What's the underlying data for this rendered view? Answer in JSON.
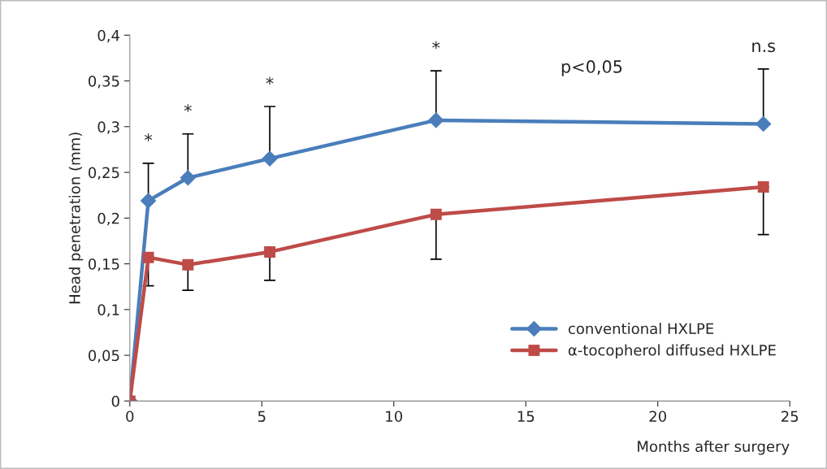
{
  "chart_data": {
    "type": "line",
    "xlabel": "Months after surgery",
    "ylabel": "Head penetration (mm)",
    "xlim": [
      0,
      25
    ],
    "xticks": [
      0,
      5,
      10,
      15,
      20,
      25
    ],
    "ylim": [
      0,
      0.4
    ],
    "yticks": [
      {
        "value": 0,
        "label": "0"
      },
      {
        "value": 0.05,
        "label": "0,05"
      },
      {
        "value": 0.1,
        "label": "0,1"
      },
      {
        "value": 0.15,
        "label": "0,15"
      },
      {
        "value": 0.2,
        "label": "0,2"
      },
      {
        "value": 0.25,
        "label": "0,25"
      },
      {
        "value": 0.3,
        "label": "0,3"
      },
      {
        "value": 0.35,
        "label": "0,35"
      },
      {
        "value": 0.4,
        "label": "0,4"
      }
    ],
    "grid": false,
    "legend": "bottom right",
    "series": [
      {
        "name": "conventional HXLPE",
        "color": "#4a7ebb",
        "marker": "diamond",
        "x": [
          0,
          0.7,
          2.2,
          5.3,
          11.6,
          24
        ],
        "values": [
          0,
          0.219,
          0.244,
          0.265,
          0.307,
          0.303
        ],
        "errors": [
          null,
          [
            0.219,
            0.26
          ],
          [
            0.244,
            0.292
          ],
          [
            0.265,
            0.322
          ],
          [
            0.307,
            0.361
          ],
          [
            0.303,
            0.363
          ]
        ]
      },
      {
        "name": "α-tocopherol diffused HXLPE",
        "color": "#be4b48",
        "marker": "square",
        "x": [
          0,
          0.7,
          2.2,
          5.3,
          11.6,
          24
        ],
        "values": [
          0,
          0.157,
          0.149,
          0.163,
          0.204,
          0.234
        ],
        "errors": [
          null,
          [
            0.126,
            0.157
          ],
          [
            0.121,
            0.149
          ],
          [
            0.132,
            0.163
          ],
          [
            0.155,
            0.204
          ],
          [
            0.182,
            0.234
          ]
        ]
      }
    ],
    "annotations": [
      {
        "text": "*",
        "x": 0.7,
        "y": 0.26
      },
      {
        "text": "*",
        "x": 2.2,
        "y": 0.292
      },
      {
        "text": "*",
        "x": 5.3,
        "y": 0.322
      },
      {
        "text": "*",
        "x": 11.6,
        "y": 0.361
      },
      "p<0,05",
      {
        "text": "n.s",
        "x": 24,
        "y": 0.363
      }
    ]
  }
}
